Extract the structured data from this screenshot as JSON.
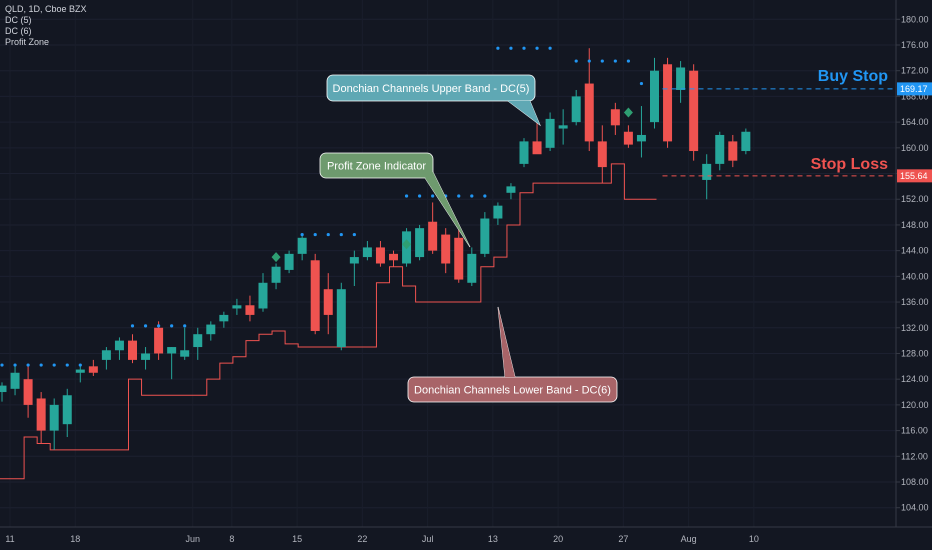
{
  "legend": {
    "symbol": "QLD, 1D, Cboe BZX",
    "indicators": [
      "DC (5)",
      "DC (6)",
      "Profit Zone"
    ]
  },
  "colors": {
    "background": "#131722",
    "up": "#26a69a",
    "down": "#ef5350",
    "upper_band": "#2196f3",
    "lower_band": "#ef5350",
    "signal": "#2e9e72",
    "buy_stop": "#2196f3",
    "stop_loss": "#ef5350",
    "axis_text": "#b2b5be",
    "note_upper_fill": "#5fa8b4",
    "note_profit_fill": "#6e9a6e",
    "note_lower_fill": "#a86468"
  },
  "chart_data": {
    "type": "candlestick",
    "ylim": [
      101,
      183
    ],
    "yticks": [
      104,
      108,
      112,
      116,
      120,
      124,
      128,
      132,
      136,
      140,
      144,
      148,
      152,
      156,
      160,
      164,
      168,
      172,
      176,
      180
    ],
    "xticks": [
      {
        "i": 0,
        "label": "11"
      },
      {
        "i": 5,
        "label": "18"
      },
      {
        "i": 14,
        "label": "Jun"
      },
      {
        "i": 17,
        "label": "8"
      },
      {
        "i": 22,
        "label": "15"
      },
      {
        "i": 27,
        "label": "22"
      },
      {
        "i": 32,
        "label": "Jul"
      },
      {
        "i": 37,
        "label": "13"
      },
      {
        "i": 42,
        "label": "20"
      },
      {
        "i": 47,
        "label": "27"
      },
      {
        "i": 52,
        "label": "Aug"
      },
      {
        "i": 57,
        "label": "10"
      }
    ],
    "candles": [
      {
        "o": 122.0,
        "h": 123.5,
        "l": 120.5,
        "c": 123.0
      },
      {
        "o": 122.5,
        "h": 126.0,
        "l": 121.5,
        "c": 125.0
      },
      {
        "o": 124.0,
        "h": 126.0,
        "l": 118.0,
        "c": 120.0
      },
      {
        "o": 121.0,
        "h": 122.0,
        "l": 114.0,
        "c": 116.0
      },
      {
        "o": 116.0,
        "h": 121.0,
        "l": 113.0,
        "c": 120.0
      },
      {
        "o": 117.0,
        "h": 122.5,
        "l": 115.0,
        "c": 121.5
      },
      {
        "o": 125.0,
        "h": 126.0,
        "l": 123.5,
        "c": 125.5
      },
      {
        "o": 126.0,
        "h": 127.0,
        "l": 124.5,
        "c": 125.0
      },
      {
        "o": 127.0,
        "h": 129.0,
        "l": 125.5,
        "c": 128.5
      },
      {
        "o": 128.5,
        "h": 130.5,
        "l": 127.0,
        "c": 130.0
      },
      {
        "o": 130.0,
        "h": 131.0,
        "l": 126.5,
        "c": 127.0
      },
      {
        "o": 127.0,
        "h": 129.0,
        "l": 125.5,
        "c": 128.0
      },
      {
        "o": 132.0,
        "h": 133.0,
        "l": 127.0,
        "c": 128.0
      },
      {
        "o": 128.0,
        "h": 129.0,
        "l": 124.0,
        "c": 129.0
      },
      {
        "o": 127.5,
        "h": 132.0,
        "l": 127.0,
        "c": 128.5
      },
      {
        "o": 129.0,
        "h": 132.0,
        "l": 127.0,
        "c": 131.0
      },
      {
        "o": 131.0,
        "h": 133.0,
        "l": 130.0,
        "c": 132.5
      },
      {
        "o": 133.0,
        "h": 134.5,
        "l": 132.0,
        "c": 134.0
      },
      {
        "o": 135.0,
        "h": 136.5,
        "l": 134.0,
        "c": 135.5
      },
      {
        "o": 135.5,
        "h": 137.0,
        "l": 133.0,
        "c": 134.0
      },
      {
        "o": 135.0,
        "h": 140.5,
        "l": 134.5,
        "c": 139.0
      },
      {
        "o": 139.0,
        "h": 142.0,
        "l": 138.0,
        "c": 141.5
      },
      {
        "o": 141.0,
        "h": 144.0,
        "l": 140.5,
        "c": 143.5
      },
      {
        "o": 143.5,
        "h": 146.5,
        "l": 142.5,
        "c": 146.0
      },
      {
        "o": 142.5,
        "h": 143.5,
        "l": 131.0,
        "c": 131.5
      },
      {
        "o": 138.0,
        "h": 140.5,
        "l": 131.0,
        "c": 134.0
      },
      {
        "o": 129.0,
        "h": 139.0,
        "l": 128.5,
        "c": 138.0
      },
      {
        "o": 142.0,
        "h": 144.0,
        "l": 138.5,
        "c": 143.0
      },
      {
        "o": 143.0,
        "h": 145.5,
        "l": 142.5,
        "c": 144.5
      },
      {
        "o": 144.5,
        "h": 145.5,
        "l": 141.5,
        "c": 142.0
      },
      {
        "o": 143.5,
        "h": 144.0,
        "l": 141.5,
        "c": 142.5
      },
      {
        "o": 142.0,
        "h": 147.5,
        "l": 141.5,
        "c": 147.0
      },
      {
        "o": 143.0,
        "h": 148.0,
        "l": 142.5,
        "c": 147.5
      },
      {
        "o": 148.5,
        "h": 151.5,
        "l": 143.5,
        "c": 144.0
      },
      {
        "o": 146.5,
        "h": 147.5,
        "l": 140.5,
        "c": 142.0
      },
      {
        "o": 146.0,
        "h": 147.5,
        "l": 139.0,
        "c": 139.5
      },
      {
        "o": 139.0,
        "h": 144.5,
        "l": 138.5,
        "c": 143.5
      },
      {
        "o": 143.5,
        "h": 150.0,
        "l": 143.0,
        "c": 149.0
      },
      {
        "o": 149.0,
        "h": 151.5,
        "l": 148.0,
        "c": 151.0
      },
      {
        "o": 153.0,
        "h": 154.5,
        "l": 152.0,
        "c": 154.0
      },
      {
        "o": 157.5,
        "h": 161.5,
        "l": 157.0,
        "c": 161.0
      },
      {
        "o": 161.0,
        "h": 164.5,
        "l": 159.5,
        "c": 159.0
      },
      {
        "o": 160.0,
        "h": 165.5,
        "l": 159.5,
        "c": 164.5
      },
      {
        "o": 163.0,
        "h": 166.0,
        "l": 160.5,
        "c": 163.5
      },
      {
        "o": 164.0,
        "h": 169.0,
        "l": 163.5,
        "c": 168.0
      },
      {
        "o": 170.0,
        "h": 175.5,
        "l": 159.5,
        "c": 161.0
      },
      {
        "o": 161.0,
        "h": 163.5,
        "l": 154.5,
        "c": 157.0
      },
      {
        "o": 166.0,
        "h": 167.0,
        "l": 162.0,
        "c": 163.5
      },
      {
        "o": 162.5,
        "h": 163.5,
        "l": 160.0,
        "c": 160.5
      },
      {
        "o": 161.0,
        "h": 166.5,
        "l": 158.5,
        "c": 162.0
      },
      {
        "o": 164.0,
        "h": 174.0,
        "l": 163.0,
        "c": 172.0
      },
      {
        "o": 173.0,
        "h": 174.0,
        "l": 160.0,
        "c": 161.0
      },
      {
        "o": 169.0,
        "h": 173.5,
        "l": 167.0,
        "c": 172.5
      },
      {
        "o": 172.0,
        "h": 173.0,
        "l": 158.0,
        "c": 159.5
      },
      {
        "o": 155.0,
        "h": 159.0,
        "l": 152.0,
        "c": 157.5
      },
      {
        "o": 157.5,
        "h": 162.5,
        "l": 156.5,
        "c": 162.0
      },
      {
        "o": 161.0,
        "h": 162.0,
        "l": 157.0,
        "c": 158.0
      },
      {
        "o": 159.5,
        "h": 163.0,
        "l": 159.0,
        "c": 162.5
      }
    ],
    "upper_band_dots": [
      {
        "i": 0,
        "v": 126.2
      },
      {
        "i": 1,
        "v": 126.2
      },
      {
        "i": 2,
        "v": 126.2
      },
      {
        "i": 3,
        "v": 126.2
      },
      {
        "i": 4,
        "v": 126.2
      },
      {
        "i": 5,
        "v": 126.2
      },
      {
        "i": 6,
        "v": 126.2
      },
      {
        "i": 10,
        "v": 132.3
      },
      {
        "i": 11,
        "v": 132.3
      },
      {
        "i": 12,
        "v": 132.3
      },
      {
        "i": 13,
        "v": 132.3
      },
      {
        "i": 14,
        "v": 132.3
      },
      {
        "i": 23,
        "v": 146.5
      },
      {
        "i": 24,
        "v": 146.5
      },
      {
        "i": 25,
        "v": 146.5
      },
      {
        "i": 26,
        "v": 146.5
      },
      {
        "i": 27,
        "v": 146.5
      },
      {
        "i": 31,
        "v": 152.5
      },
      {
        "i": 32,
        "v": 152.5
      },
      {
        "i": 33,
        "v": 152.5
      },
      {
        "i": 34,
        "v": 152.5
      },
      {
        "i": 35,
        "v": 152.5
      },
      {
        "i": 36,
        "v": 152.5
      },
      {
        "i": 37,
        "v": 152.5
      },
      {
        "i": 38,
        "v": 175.5
      },
      {
        "i": 39,
        "v": 175.5
      },
      {
        "i": 40,
        "v": 175.5
      },
      {
        "i": 41,
        "v": 175.5
      },
      {
        "i": 42,
        "v": 175.5
      },
      {
        "i": 44,
        "v": 173.5
      },
      {
        "i": 45,
        "v": 173.5
      },
      {
        "i": 46,
        "v": 173.5
      },
      {
        "i": 47,
        "v": 173.5
      },
      {
        "i": 48,
        "v": 173.5
      },
      {
        "i": 49,
        "v": 170.0
      }
    ],
    "lower_band": [
      {
        "i": 0,
        "v": 108.5
      },
      {
        "i": 1,
        "v": 108.5
      },
      {
        "i": 2,
        "v": 115.0
      },
      {
        "i": 3,
        "v": 114.0
      },
      {
        "i": 4,
        "v": 113.0
      },
      {
        "i": 9,
        "v": 113.0
      },
      {
        "i": 10,
        "v": 124.0
      },
      {
        "i": 11,
        "v": 121.5
      },
      {
        "i": 15,
        "v": 121.5
      },
      {
        "i": 16,
        "v": 124.0
      },
      {
        "i": 17,
        "v": 126.5
      },
      {
        "i": 18,
        "v": 127.5
      },
      {
        "i": 19,
        "v": 130.0
      },
      {
        "i": 20,
        "v": 131.0
      },
      {
        "i": 21,
        "v": 131.5
      },
      {
        "i": 22,
        "v": 129.5
      },
      {
        "i": 23,
        "v": 129.0
      },
      {
        "i": 28,
        "v": 129.0
      },
      {
        "i": 29,
        "v": 139.0
      },
      {
        "i": 30,
        "v": 141.5
      },
      {
        "i": 31,
        "v": 138.5
      },
      {
        "i": 32,
        "v": 136.0
      },
      {
        "i": 36,
        "v": 136.0
      },
      {
        "i": 37,
        "v": 141.5
      },
      {
        "i": 38,
        "v": 143.0
      },
      {
        "i": 39,
        "v": 148.0
      },
      {
        "i": 40,
        "v": 153.0
      },
      {
        "i": 41,
        "v": 154.5
      },
      {
        "i": 42,
        "v": 154.5
      },
      {
        "i": 47,
        "v": 157.5
      },
      {
        "i": 48,
        "v": 152.0
      },
      {
        "i": 50,
        "v": 152.0
      }
    ],
    "signals": [
      {
        "i": 21,
        "v": 143.0
      },
      {
        "i": 31,
        "v": 145.0
      },
      {
        "i": 48,
        "v": 165.5
      }
    ],
    "buy_stop": {
      "value": "169.17",
      "label": "Buy Stop",
      "level": 169.17
    },
    "stop_loss": {
      "value": "155.64",
      "label": "Stop Loss",
      "level": 155.64
    }
  },
  "annotations": [
    {
      "text": "Donchian Channels Upper Band - DC(5)",
      "fill": "#5fa8b4"
    },
    {
      "text": "Profit Zone Indicator",
      "fill": "#6e9a6e"
    },
    {
      "text": "Donchian Channels Lower Band - DC(6)",
      "fill": "#a86468"
    }
  ]
}
